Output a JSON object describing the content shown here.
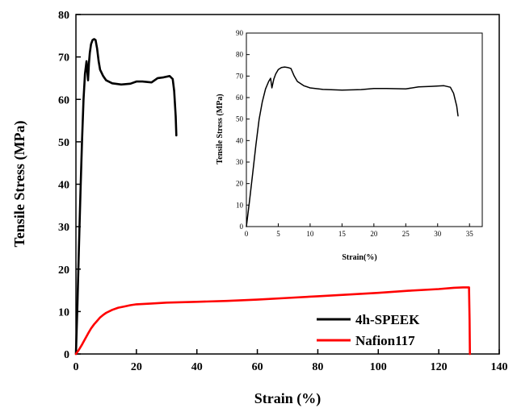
{
  "chart_data": [
    {
      "type": "line",
      "xlabel": "Strain (%)",
      "ylabel": "Tensile Stress (MPa)",
      "xlim": [
        0,
        140
      ],
      "ylim": [
        0,
        80
      ],
      "xticks": [
        "0",
        "20",
        "40",
        "60",
        "80",
        "100",
        "120",
        "140"
      ],
      "yticks": [
        "0",
        "10",
        "20",
        "30",
        "40",
        "50",
        "60",
        "70",
        "80"
      ],
      "legend_position": "bottom-right",
      "series": [
        {
          "name": "4h-SPEEK",
          "color": "#000000",
          "x": [
            0,
            0.5,
            1,
            1.5,
            2,
            2.5,
            3,
            3.5,
            4,
            4.3,
            4.6,
            5,
            5.5,
            6,
            6.5,
            7,
            7.5,
            8,
            9,
            10,
            12,
            15,
            18,
            20,
            22,
            25,
            27,
            29,
            31,
            32,
            32.5,
            33,
            33.2
          ],
          "y": [
            0,
            12,
            25,
            38,
            50,
            60,
            66,
            69,
            64.5,
            68.5,
            71,
            73,
            74,
            74.2,
            74,
            72,
            69,
            67,
            65.5,
            64.5,
            63.8,
            63.5,
            63.7,
            64.2,
            64.2,
            64,
            65,
            65.2,
            65.5,
            64.8,
            62,
            56,
            51.5
          ]
        },
        {
          "name": "Nafion117",
          "color": "#ff0000",
          "x": [
            0,
            1,
            2,
            3,
            4,
            5,
            6,
            7,
            8,
            9,
            10,
            12,
            14,
            16,
            18,
            20,
            25,
            30,
            40,
            50,
            60,
            70,
            80,
            90,
            100,
            110,
            120,
            125,
            128,
            130,
            130.2,
            130.3
          ],
          "y": [
            0,
            1,
            2.2,
            3.5,
            4.8,
            6,
            7,
            7.8,
            8.6,
            9.2,
            9.7,
            10.4,
            10.9,
            11.2,
            11.5,
            11.7,
            11.9,
            12.1,
            12.3,
            12.5,
            12.8,
            13.2,
            13.6,
            14,
            14.4,
            14.9,
            15.3,
            15.6,
            15.7,
            15.7,
            8,
            0
          ]
        }
      ]
    },
    {
      "type": "line",
      "xlabel": "Strain(%)",
      "ylabel": "Tensile Stress (MPa)",
      "xlim": [
        0,
        37
      ],
      "ylim": [
        0,
        90
      ],
      "xticks": [
        "0",
        "5",
        "10",
        "15",
        "20",
        "25",
        "30",
        "35"
      ],
      "yticks": [
        "0",
        "10",
        "20",
        "30",
        "40",
        "50",
        "60",
        "70",
        "80",
        "90"
      ],
      "series": [
        {
          "color": "#000000",
          "x": [
            0,
            0.5,
            1,
            1.5,
            2,
            2.5,
            3,
            3.5,
            3.8,
            4,
            4.3,
            4.6,
            5,
            5.5,
            6,
            6.5,
            7,
            7.5,
            8,
            9,
            10,
            12,
            15,
            18,
            20,
            22,
            25,
            27,
            29,
            31,
            32,
            32.5,
            33,
            33.2
          ],
          "y": [
            0,
            12,
            25,
            38,
            50,
            58,
            64,
            67.5,
            69,
            64.5,
            68.5,
            71,
            73,
            74,
            74.2,
            74,
            73.5,
            70,
            67.5,
            65.5,
            64.5,
            63.8,
            63.5,
            63.7,
            64.2,
            64.2,
            64,
            65,
            65.2,
            65.5,
            64.8,
            62,
            56,
            51.5
          ]
        }
      ]
    }
  ]
}
